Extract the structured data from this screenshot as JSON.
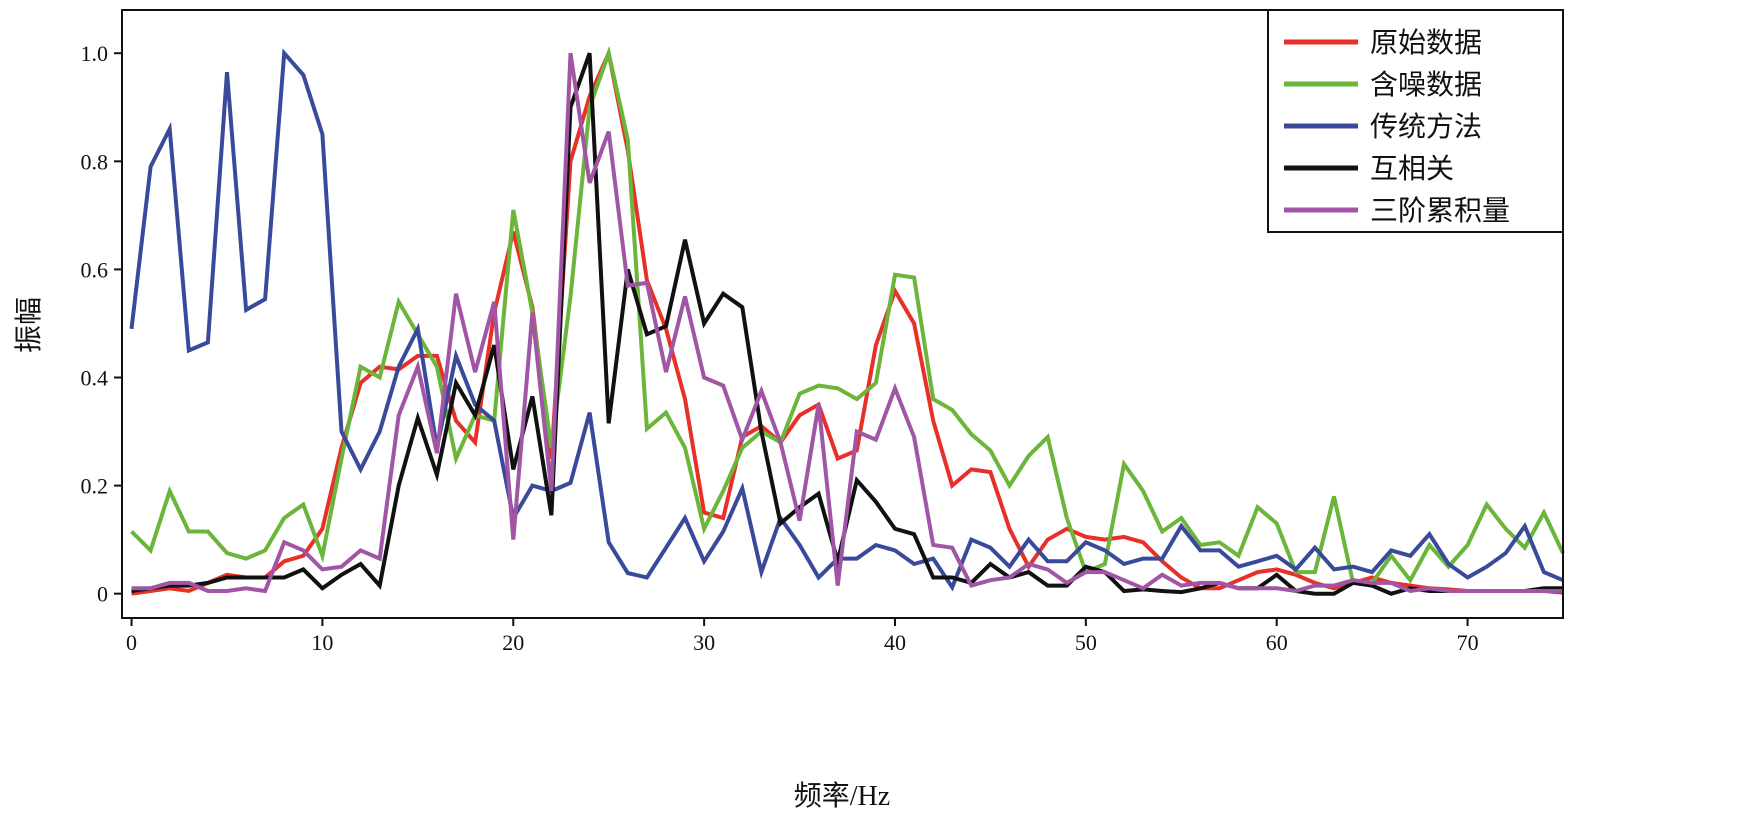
{
  "chart_data": {
    "type": "line",
    "title": "",
    "xlabel": "频率/Hz",
    "ylabel": "振幅",
    "xlim": [
      -0.5,
      75
    ],
    "ylim": [
      -0.045,
      1.08
    ],
    "xticks": [
      0,
      10,
      20,
      30,
      40,
      50,
      60,
      70
    ],
    "xtick_labels": [
      "0",
      "10",
      "20",
      "30",
      "40",
      "50",
      "60",
      "70"
    ],
    "yticks": [
      0,
      0.2,
      0.4,
      0.6,
      0.8,
      1.0
    ],
    "ytick_labels": [
      "0",
      "0.2",
      "0.4",
      "0.6",
      "0.8",
      "1.0"
    ],
    "grid": false,
    "legend_position": "top-right",
    "x_start": 0,
    "x_step": 1,
    "series": [
      {
        "name": "原始数据",
        "color": "#e8302a",
        "values": [
          0,
          0.005,
          0.01,
          0.005,
          0.02,
          0.035,
          0.03,
          0.03,
          0.06,
          0.07,
          0.12,
          0.27,
          0.39,
          0.42,
          0.415,
          0.44,
          0.44,
          0.32,
          0.28,
          0.52,
          0.67,
          0.53,
          0.25,
          0.8,
          0.92,
          1.0,
          0.82,
          0.58,
          0.49,
          0.36,
          0.15,
          0.14,
          0.29,
          0.31,
          0.28,
          0.33,
          0.35,
          0.25,
          0.265,
          0.46,
          0.56,
          0.5,
          0.32,
          0.2,
          0.23,
          0.225,
          0.12,
          0.05,
          0.1,
          0.12,
          0.105,
          0.1,
          0.105,
          0.095,
          0.06,
          0.03,
          0.01,
          0.01,
          0.025,
          0.04,
          0.045,
          0.035,
          0.02,
          0.01,
          0.02,
          0.03,
          0.02,
          0.015,
          0.01,
          0.008,
          0.005,
          0.005,
          0.005,
          0.005,
          0.005,
          0.002
        ]
      },
      {
        "name": "含噪数据",
        "color": "#6ab53a",
        "values": [
          0.115,
          0.08,
          0.19,
          0.115,
          0.115,
          0.075,
          0.065,
          0.08,
          0.14,
          0.165,
          0.07,
          0.25,
          0.42,
          0.4,
          0.54,
          0.48,
          0.42,
          0.25,
          0.33,
          0.32,
          0.71,
          0.52,
          0.27,
          0.55,
          0.9,
          1.0,
          0.84,
          0.305,
          0.335,
          0.27,
          0.12,
          0.19,
          0.27,
          0.3,
          0.28,
          0.37,
          0.385,
          0.38,
          0.36,
          0.39,
          0.59,
          0.585,
          0.36,
          0.34,
          0.295,
          0.265,
          0.2,
          0.255,
          0.29,
          0.14,
          0.04,
          0.055,
          0.24,
          0.19,
          0.115,
          0.14,
          0.09,
          0.095,
          0.07,
          0.16,
          0.13,
          0.04,
          0.04,
          0.18,
          0.02,
          0.02,
          0.07,
          0.025,
          0.09,
          0.05,
          0.09,
          0.165,
          0.12,
          0.085,
          0.15,
          0.075
        ]
      },
      {
        "name": "传统方法",
        "color": "#3a4a9a",
        "values": [
          0.49,
          0.79,
          0.86,
          0.45,
          0.465,
          0.965,
          0.525,
          0.545,
          1.0,
          0.96,
          0.85,
          0.3,
          0.23,
          0.3,
          0.42,
          0.49,
          0.27,
          0.44,
          0.35,
          0.32,
          0.14,
          0.2,
          0.19,
          0.205,
          0.335,
          0.095,
          0.038,
          0.03,
          0.085,
          0.14,
          0.06,
          0.115,
          0.195,
          0.04,
          0.14,
          0.09,
          0.03,
          0.065,
          0.065,
          0.09,
          0.08,
          0.055,
          0.065,
          0.012,
          0.1,
          0.085,
          0.05,
          0.1,
          0.06,
          0.06,
          0.095,
          0.08,
          0.055,
          0.065,
          0.065,
          0.125,
          0.08,
          0.08,
          0.05,
          0.06,
          0.07,
          0.045,
          0.085,
          0.045,
          0.05,
          0.04,
          0.08,
          0.07,
          0.11,
          0.055,
          0.03,
          0.05,
          0.075,
          0.125,
          0.04,
          0.025
        ]
      },
      {
        "name": "互相关",
        "color": "#111111",
        "values": [
          0.005,
          0.01,
          0.015,
          0.015,
          0.02,
          0.03,
          0.03,
          0.03,
          0.03,
          0.045,
          0.01,
          0.035,
          0.055,
          0.015,
          0.2,
          0.325,
          0.22,
          0.39,
          0.33,
          0.46,
          0.23,
          0.365,
          0.145,
          0.9,
          1.0,
          0.315,
          0.6,
          0.48,
          0.495,
          0.655,
          0.5,
          0.555,
          0.53,
          0.3,
          0.13,
          0.16,
          0.185,
          0.06,
          0.21,
          0.17,
          0.12,
          0.11,
          0.03,
          0.03,
          0.02,
          0.055,
          0.03,
          0.04,
          0.015,
          0.015,
          0.05,
          0.04,
          0.005,
          0.008,
          0.005,
          0.003,
          0.01,
          0.02,
          0.01,
          0.01,
          0.035,
          0.005,
          0,
          0,
          0.02,
          0.015,
          0,
          0.01,
          0.005,
          0.005,
          0.005,
          0.005,
          0.005,
          0.005,
          0.01,
          0.01
        ]
      },
      {
        "name": "三阶累积量",
        "color": "#a055a5",
        "values": [
          0.01,
          0.01,
          0.02,
          0.02,
          0.005,
          0.005,
          0.01,
          0.005,
          0.095,
          0.08,
          0.045,
          0.05,
          0.08,
          0.065,
          0.33,
          0.42,
          0.26,
          0.555,
          0.41,
          0.54,
          0.1,
          0.52,
          0.19,
          1.0,
          0.76,
          0.855,
          0.57,
          0.575,
          0.41,
          0.55,
          0.4,
          0.385,
          0.285,
          0.375,
          0.28,
          0.135,
          0.35,
          0.015,
          0.3,
          0.285,
          0.38,
          0.29,
          0.09,
          0.085,
          0.015,
          0.025,
          0.03,
          0.055,
          0.045,
          0.02,
          0.04,
          0.04,
          0.025,
          0.01,
          0.035,
          0.015,
          0.02,
          0.02,
          0.01,
          0.01,
          0.01,
          0.005,
          0.015,
          0.015,
          0.025,
          0.02,
          0.02,
          0.005,
          0.01,
          0.005,
          0.005,
          0.005,
          0.005,
          0.005,
          0.005,
          0.005
        ]
      }
    ]
  }
}
